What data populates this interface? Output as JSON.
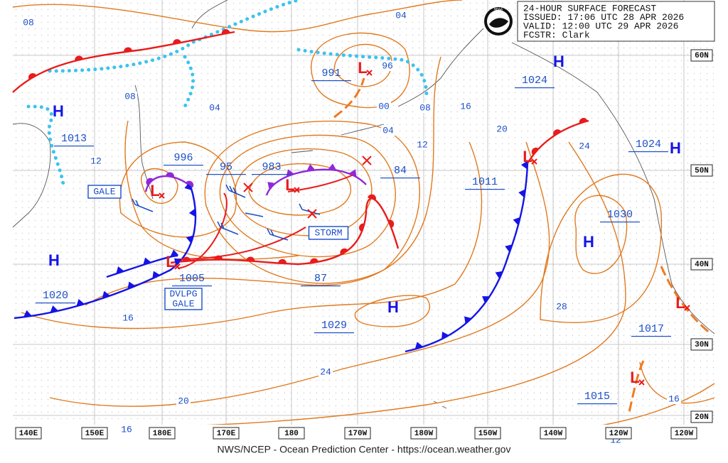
{
  "header": {
    "lines": [
      "24-HOUR SURFACE FORECAST",
      "ISSUED: 17:06 UTC 28 APR 2026",
      "VALID:  12:00 UTC 29 APR 2026",
      "FCSTR:  Clark"
    ],
    "logo": "NOAA"
  },
  "pressure_labels": [
    "991",
    "996",
    "95",
    "983",
    "84",
    "1011",
    "1030",
    "1005",
    "87",
    "1020",
    "1029",
    "1017",
    "1015",
    "1024",
    "1024",
    "1013"
  ],
  "highs": [
    "H",
    "H",
    "H",
    "H",
    "H",
    "H"
  ],
  "lows": [
    "L",
    "L",
    "L",
    "L",
    "L",
    "L",
    "L"
  ],
  "isobar_labels": [
    "04",
    "08",
    "08",
    "04",
    "96",
    "00",
    "08",
    "16",
    "04",
    "12",
    "12",
    "20",
    "24",
    "16",
    "28",
    "24",
    "20",
    "16",
    "16",
    "12"
  ],
  "warnings": [
    "GALE",
    "STORM"
  ],
  "developing_warning": [
    "DVLPG",
    "GALE"
  ],
  "latitude_labels": [
    "60N",
    "50N",
    "40N",
    "30N",
    "20N"
  ],
  "longitude_labels": [
    "140E",
    "150E",
    "180E",
    "170E",
    "180",
    "170W",
    "180W",
    "150W",
    "140W",
    "120W",
    "120W"
  ],
  "footer": "NWS/NCEP - Ocean Prediction Center - https://ocean.weather.gov"
}
